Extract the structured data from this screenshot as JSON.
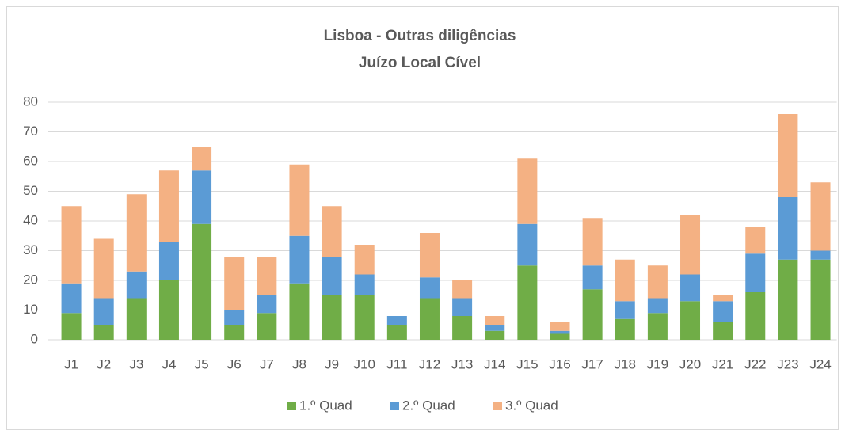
{
  "chart_data": {
    "type": "stacked_bar",
    "title": "Lisboa - Outras diligências",
    "subtitle": "Juízo Local Cível",
    "categories": [
      "J1",
      "J2",
      "J3",
      "J4",
      "J5",
      "J6",
      "J7",
      "J8",
      "J9",
      "J10",
      "J11",
      "J12",
      "J13",
      "J14",
      "J15",
      "J16",
      "J17",
      "J18",
      "J19",
      "J20",
      "J21",
      "J22",
      "J23",
      "J24"
    ],
    "series": [
      {
        "name": "1.º Quad",
        "color": "#70ad47",
        "values": [
          9,
          5,
          14,
          20,
          39,
          5,
          9,
          19,
          15,
          15,
          5,
          14,
          8,
          3,
          25,
          2,
          17,
          7,
          9,
          13,
          6,
          16,
          27,
          27
        ]
      },
      {
        "name": "2.º Quad",
        "color": "#5b9bd5",
        "values": [
          10,
          9,
          9,
          13,
          18,
          5,
          6,
          16,
          13,
          7,
          3,
          7,
          6,
          2,
          14,
          1,
          8,
          6,
          5,
          9,
          7,
          13,
          21,
          3
        ]
      },
      {
        "name": "3.º Quad",
        "color": "#f4b183",
        "values": [
          26,
          20,
          26,
          24,
          8,
          18,
          13,
          24,
          17,
          10,
          0,
          15,
          6,
          3,
          22,
          3,
          16,
          14,
          11,
          20,
          2,
          9,
          28,
          23
        ]
      }
    ],
    "ylim": [
      0,
      80
    ],
    "yticks": [
      0,
      10,
      20,
      30,
      40,
      50,
      60,
      70,
      80
    ],
    "grid": true,
    "legend": "bottom"
  }
}
